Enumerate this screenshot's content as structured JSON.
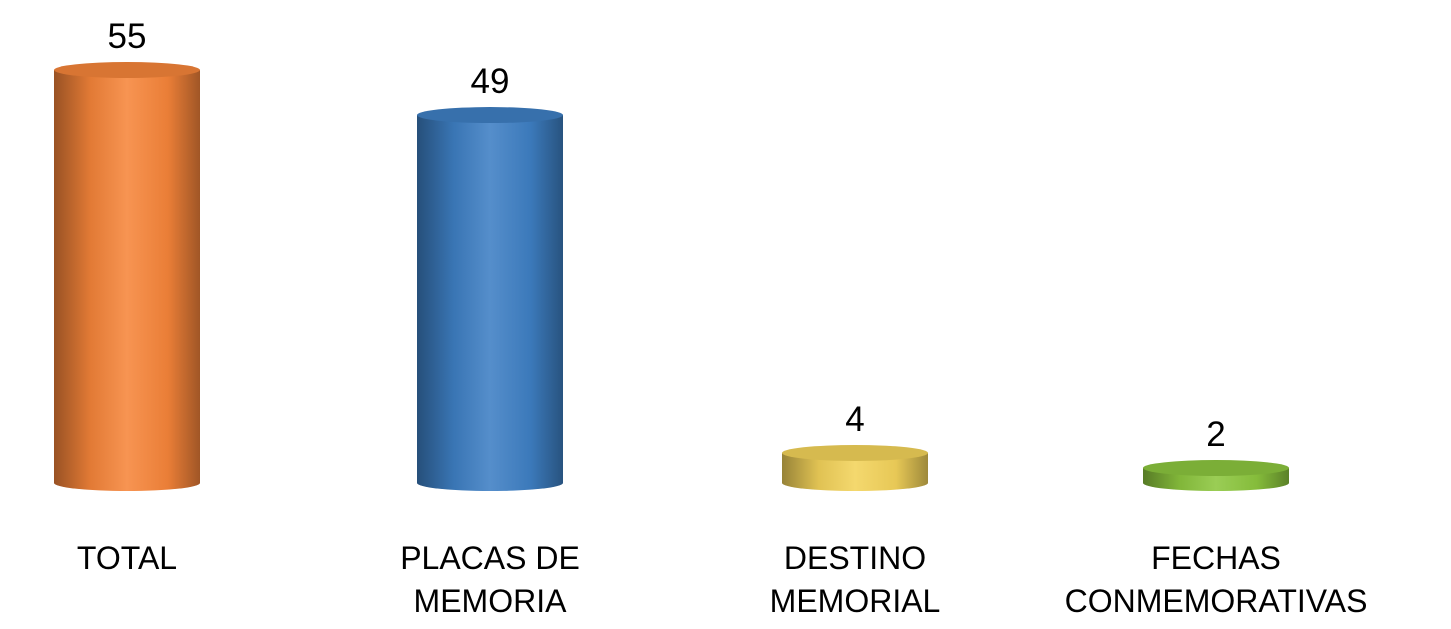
{
  "chart_data": {
    "type": "bar",
    "style": "3d-cylinder",
    "title": "",
    "xlabel": "",
    "ylabel": "",
    "ylim": [
      0,
      55
    ],
    "grid": false,
    "legend": "none",
    "axes_visible": false,
    "categories": [
      [
        "TOTAL"
      ],
      [
        "PLACAS DE",
        "MEMORIA"
      ],
      [
        "DESTINO",
        "MEMORIAL"
      ],
      [
        "FECHAS",
        "CONMEMORATIVAS"
      ]
    ],
    "values": [
      55,
      49,
      4,
      2
    ],
    "data_labels": [
      "55",
      "49",
      "4",
      "2"
    ],
    "colors": [
      "#F6853A",
      "#3E7FC4",
      "#F3D35A",
      "#8CC63E"
    ]
  }
}
